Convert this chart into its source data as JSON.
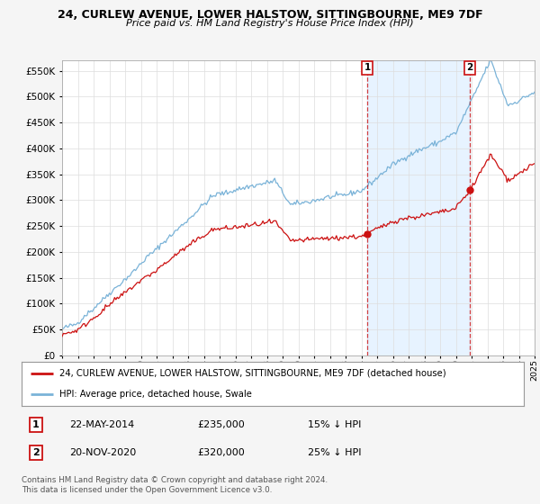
{
  "title": "24, CURLEW AVENUE, LOWER HALSTOW, SITTINGBOURNE, ME9 7DF",
  "subtitle": "Price paid vs. HM Land Registry's House Price Index (HPI)",
  "ytick_values": [
    0,
    50000,
    100000,
    150000,
    200000,
    250000,
    300000,
    350000,
    400000,
    450000,
    500000,
    550000
  ],
  "ylim": [
    0,
    570000
  ],
  "xlim_start": 1995.25,
  "xlim_end": 2025.0,
  "hpi_color": "#7ab3d8",
  "price_color": "#cc1111",
  "shade_color": "#ddeeff",
  "purchase1_date": 2014.38,
  "purchase1_price": 235000,
  "purchase2_date": 2020.89,
  "purchase2_price": 320000,
  "purchase1_display": "22-MAY-2014",
  "purchase1_price_display": "£235,000",
  "purchase1_hpi_note": "15% ↓ HPI",
  "purchase2_display": "20-NOV-2020",
  "purchase2_price_display": "£320,000",
  "purchase2_hpi_note": "25% ↓ HPI",
  "legend_line1": "24, CURLEW AVENUE, LOWER HALSTOW, SITTINGBOURNE, ME9 7DF (detached house)",
  "legend_line2": "HPI: Average price, detached house, Swale",
  "footnote": "Contains HM Land Registry data © Crown copyright and database right 2024.\nThis data is licensed under the Open Government Licence v3.0.",
  "bg_color": "#f5f5f5",
  "plot_bg": "#ffffff",
  "grid_color": "#dddddd"
}
